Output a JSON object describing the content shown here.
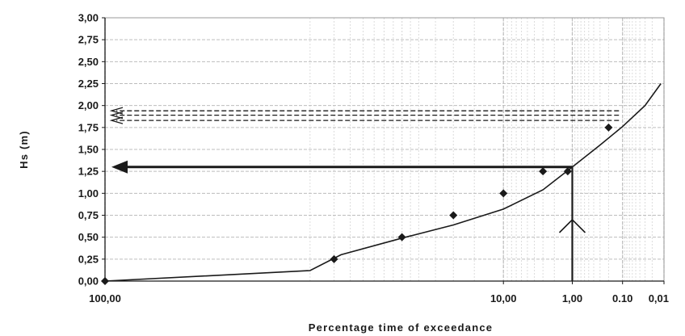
{
  "chart_data": {
    "type": "line",
    "title": "",
    "xlabel": "Percentage time of exceedance",
    "ylabel": "Hs (m)",
    "x_scale": "probability",
    "x_reversed": true,
    "xlim": [
      100,
      0.01
    ],
    "ylim": [
      0,
      3
    ],
    "x_tick_values": [
      100,
      10,
      1,
      0.1,
      0.01
    ],
    "x_tick_labels": [
      "100,00",
      "10,00",
      "1,00",
      "0.10",
      "0,01"
    ],
    "y_tick_values": [
      0,
      0.25,
      0.5,
      0.75,
      1,
      1.25,
      1.5,
      1.75,
      2,
      2.25,
      2.5,
      2.75,
      3
    ],
    "y_tick_labels": [
      "0,00",
      "0,25",
      "0,50",
      "0,75",
      "1,00",
      "1,25",
      "1,50",
      "1,75",
      "2,00",
      "2,25",
      "2,50",
      "2,75",
      "3,00"
    ],
    "grid": true,
    "series": [
      {
        "kind": "points",
        "x": [
          100,
          90,
          60,
          30,
          10,
          3,
          1.2,
          0.2
        ],
        "y": [
          0,
          0.25,
          0.5,
          0.75,
          1.0,
          1.25,
          1.25,
          1.75
        ]
      },
      {
        "kind": "fitted-line",
        "x": [
          100,
          95,
          88,
          60,
          30,
          10,
          3,
          1,
          0.3,
          0.1,
          0.03,
          0.012
        ],
        "y": [
          0,
          0.12,
          0.3,
          0.49,
          0.64,
          0.82,
          1.04,
          1.3,
          1.55,
          1.76,
          2.0,
          2.25
        ]
      }
    ],
    "annotations": [
      {
        "kind": "design-arrow",
        "style": "solid",
        "x": 1,
        "y": 1.3
      },
      {
        "kind": "design-arrow",
        "style": "dashed",
        "x": 0.12,
        "y": 1.83
      },
      {
        "kind": "design-arrow",
        "style": "dashed",
        "x": 0.12,
        "y": 1.89
      },
      {
        "kind": "design-arrow",
        "style": "dashed",
        "x": 0.12,
        "y": 1.94
      }
    ],
    "colors": {
      "line": "#1a1a1a",
      "grid": "#bdbdbd",
      "grid_minor": "#dcdcdc",
      "background": "#ffffff"
    }
  }
}
